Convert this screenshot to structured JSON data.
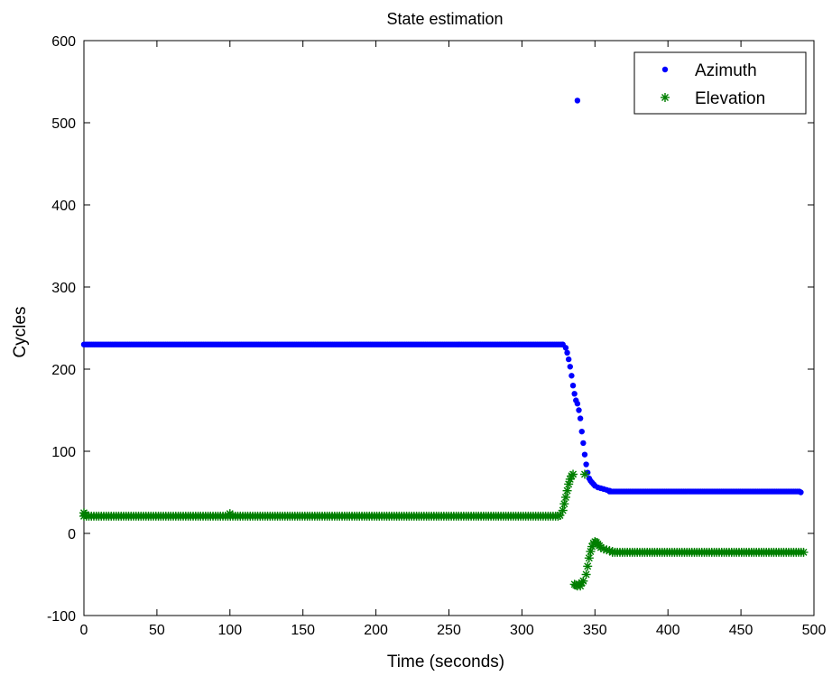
{
  "chart_data": {
    "type": "scatter",
    "title": "State estimation",
    "xlabel": "Time (seconds)",
    "ylabel": "Cycles",
    "xlim": [
      0,
      500
    ],
    "ylim": [
      -100,
      600
    ],
    "xticks": [
      0,
      50,
      100,
      150,
      200,
      250,
      300,
      350,
      400,
      450,
      500
    ],
    "yticks": [
      -100,
      0,
      100,
      200,
      300,
      400,
      500,
      600
    ],
    "grid": false,
    "legend_position": "top-right",
    "series": [
      {
        "name": "Azimuth",
        "marker": "dot",
        "color": "#0000ff",
        "segments": [
          {
            "x_start": 0,
            "x_end": 328,
            "step": 1.3,
            "y": 230
          },
          {
            "x_start": 491,
            "x_end": 491,
            "step": 1,
            "y": 50
          }
        ],
        "points": [
          [
            328,
            230
          ],
          [
            330,
            226
          ],
          [
            331,
            220
          ],
          [
            332,
            212
          ],
          [
            333,
            203
          ],
          [
            334,
            192
          ],
          [
            335,
            180
          ],
          [
            336,
            170
          ],
          [
            337,
            162
          ],
          [
            338,
            158
          ],
          [
            339,
            150
          ],
          [
            340,
            140
          ],
          [
            341,
            124
          ],
          [
            342,
            110
          ],
          [
            343,
            96
          ],
          [
            344,
            84
          ],
          [
            345,
            74
          ],
          [
            346,
            67
          ],
          [
            347,
            64
          ],
          [
            348,
            62
          ],
          [
            349,
            60
          ],
          [
            350,
            58
          ],
          [
            352,
            56
          ],
          [
            354,
            55
          ],
          [
            356,
            54
          ],
          [
            358,
            53
          ],
          [
            360,
            52
          ],
          [
            338,
            527
          ]
        ],
        "tail": {
          "x_start": 360,
          "x_end": 491,
          "step": 1.3,
          "y": 51
        }
      },
      {
        "name": "Elevation",
        "marker": "star",
        "color": "#007f00",
        "segments": [
          {
            "x_start": 0,
            "x_end": 326,
            "step": 1.7,
            "y": 21
          }
        ],
        "points": [
          [
            0,
            25
          ],
          [
            1,
            23
          ],
          [
            100,
            24
          ],
          [
            326,
            22
          ],
          [
            328,
            28
          ],
          [
            329,
            36
          ],
          [
            330,
            44
          ],
          [
            331,
            52
          ],
          [
            332,
            60
          ],
          [
            333,
            66
          ],
          [
            334,
            70
          ],
          [
            335,
            72
          ],
          [
            336,
            -62
          ],
          [
            337,
            -63
          ],
          [
            338,
            -64
          ],
          [
            339,
            -62
          ],
          [
            340,
            -64
          ],
          [
            341,
            -60
          ],
          [
            342,
            -58
          ],
          [
            343,
            72
          ],
          [
            344,
            -50
          ],
          [
            345,
            -40
          ],
          [
            346,
            -30
          ],
          [
            347,
            -22
          ],
          [
            348,
            -16
          ],
          [
            349,
            -12
          ],
          [
            350,
            -10
          ],
          [
            351,
            -11
          ],
          [
            352,
            -13
          ],
          [
            353,
            -15
          ],
          [
            354,
            -17
          ],
          [
            356,
            -19
          ],
          [
            358,
            -20
          ],
          [
            360,
            -21
          ],
          [
            362,
            -22
          ]
        ],
        "tail": {
          "x_start": 362,
          "x_end": 494,
          "step": 1.7,
          "y": -23
        }
      }
    ]
  }
}
